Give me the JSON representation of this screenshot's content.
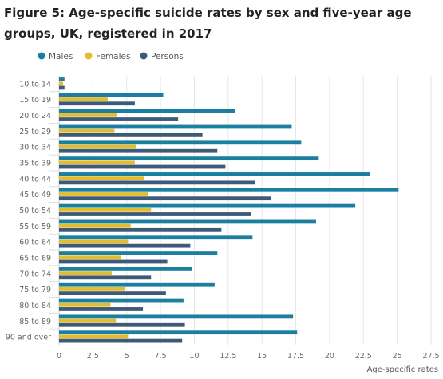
{
  "chart_data": {
    "type": "bar",
    "orientation": "horizontal",
    "title": "Figure 5: Age-specific suicide rates by sex and five-year age groups, UK, registered in 2017",
    "xlabel": "Age-specific rates",
    "ylabel": "",
    "xlim": [
      0,
      27.5
    ],
    "xticks": [
      "0",
      "2.5",
      "5",
      "7.5",
      "10",
      "12.5",
      "15",
      "17.5",
      "20",
      "22.5",
      "25",
      "27.5"
    ],
    "grid": true,
    "legend_position": "top-left",
    "categories": [
      "10 to 14",
      "15 to 19",
      "20 to 24",
      "25 to 29",
      "30 to 34",
      "35 to 39",
      "40 to 44",
      "45 to 49",
      "50 to 54",
      "55 to 59",
      "60 to 64",
      "65 to 69",
      "70 to 74",
      "75 to 79",
      "80 to 84",
      "85 to 89",
      "90 and over"
    ],
    "series": [
      {
        "name": "Males",
        "color": "#1b7fa0",
        "values": [
          0.4,
          7.7,
          13.0,
          17.2,
          17.9,
          19.2,
          23.0,
          25.1,
          21.9,
          19.0,
          14.3,
          11.7,
          9.8,
          11.5,
          9.2,
          17.3,
          17.6
        ]
      },
      {
        "name": "Females",
        "color": "#e3bd2f",
        "values": [
          0.3,
          3.6,
          4.3,
          4.1,
          5.7,
          5.6,
          6.3,
          6.6,
          6.8,
          5.3,
          5.1,
          4.6,
          3.9,
          4.9,
          3.8,
          4.2,
          5.1
        ]
      },
      {
        "name": "Persons",
        "color": "#3e5a78",
        "values": [
          0.4,
          5.6,
          8.8,
          10.6,
          11.7,
          12.3,
          14.5,
          15.7,
          14.2,
          12.0,
          9.7,
          8.0,
          6.8,
          7.9,
          6.2,
          9.3,
          9.1
        ]
      }
    ]
  }
}
